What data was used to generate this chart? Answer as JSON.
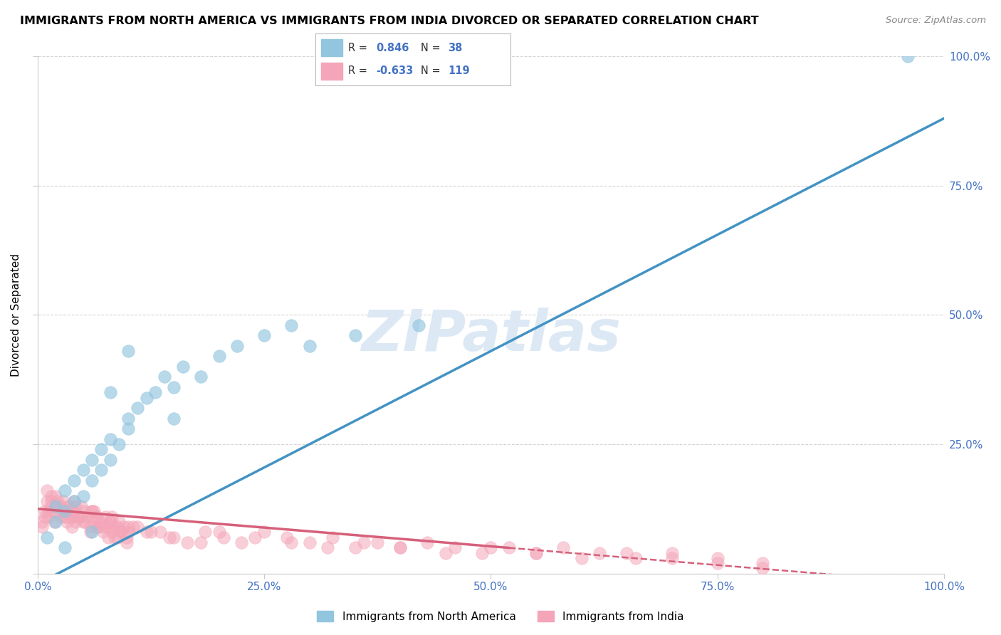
{
  "title": "IMMIGRANTS FROM NORTH AMERICA VS IMMIGRANTS FROM INDIA DIVORCED OR SEPARATED CORRELATION CHART",
  "source": "Source: ZipAtlas.com",
  "ylabel": "Divorced or Separated",
  "legend_bottom": [
    "Immigrants from North America",
    "Immigrants from India"
  ],
  "blue_R": "0.846",
  "blue_N": "38",
  "pink_R": "-0.633",
  "pink_N": "119",
  "blue_color": "#92c5de",
  "pink_color": "#f4a6b8",
  "blue_line_color": "#4393c3",
  "pink_line_color": "#d6607a",
  "watermark": "ZIPatlas",
  "watermark_color": "#dce9f5",
  "xlim": [
    0,
    1.0
  ],
  "ylim": [
    0,
    1.0
  ],
  "xticks": [
    0.0,
    0.25,
    0.5,
    0.75,
    1.0
  ],
  "yticks": [
    0.25,
    0.5,
    0.75,
    1.0
  ],
  "xtick_labels": [
    "0.0%",
    "25.0%",
    "50.0%",
    "75.0%",
    "100.0%"
  ],
  "ytick_labels_right": [
    "25.0%",
    "50.0%",
    "75.0%",
    "100.0%"
  ],
  "background_color": "#ffffff",
  "grid_color": "#d0d0d0",
  "blue_x": [
    0.01,
    0.02,
    0.02,
    0.03,
    0.03,
    0.04,
    0.04,
    0.05,
    0.05,
    0.06,
    0.06,
    0.07,
    0.07,
    0.08,
    0.08,
    0.09,
    0.1,
    0.1,
    0.11,
    0.12,
    0.13,
    0.14,
    0.15,
    0.16,
    0.18,
    0.2,
    0.22,
    0.25,
    0.28,
    0.3,
    0.1,
    0.03,
    0.15,
    0.06,
    0.08,
    0.35,
    0.42,
    0.96
  ],
  "blue_y": [
    0.07,
    0.1,
    0.13,
    0.12,
    0.16,
    0.14,
    0.18,
    0.15,
    0.2,
    0.18,
    0.22,
    0.2,
    0.24,
    0.22,
    0.26,
    0.25,
    0.28,
    0.3,
    0.32,
    0.34,
    0.35,
    0.38,
    0.36,
    0.4,
    0.38,
    0.42,
    0.44,
    0.46,
    0.48,
    0.44,
    0.43,
    0.05,
    0.3,
    0.08,
    0.35,
    0.46,
    0.48,
    1.0
  ],
  "pink_x": [
    0.005,
    0.008,
    0.01,
    0.012,
    0.015,
    0.018,
    0.02,
    0.022,
    0.025,
    0.028,
    0.03,
    0.032,
    0.035,
    0.038,
    0.04,
    0.042,
    0.045,
    0.048,
    0.05,
    0.052,
    0.055,
    0.058,
    0.06,
    0.062,
    0.065,
    0.068,
    0.07,
    0.072,
    0.075,
    0.078,
    0.08,
    0.082,
    0.085,
    0.088,
    0.09,
    0.092,
    0.095,
    0.098,
    0.1,
    0.01,
    0.015,
    0.02,
    0.025,
    0.03,
    0.035,
    0.04,
    0.005,
    0.008,
    0.012,
    0.018,
    0.022,
    0.028,
    0.032,
    0.038,
    0.042,
    0.048,
    0.052,
    0.058,
    0.062,
    0.068,
    0.072,
    0.078,
    0.082,
    0.088,
    0.092,
    0.098,
    0.015,
    0.025,
    0.045,
    0.065,
    0.085,
    0.105,
    0.125,
    0.145,
    0.165,
    0.185,
    0.205,
    0.225,
    0.25,
    0.275,
    0.3,
    0.325,
    0.35,
    0.375,
    0.4,
    0.43,
    0.46,
    0.49,
    0.52,
    0.55,
    0.58,
    0.62,
    0.66,
    0.7,
    0.75,
    0.8,
    0.1,
    0.12,
    0.15,
    0.18,
    0.2,
    0.24,
    0.28,
    0.32,
    0.36,
    0.4,
    0.45,
    0.5,
    0.55,
    0.6,
    0.65,
    0.7,
    0.75,
    0.8,
    0.04,
    0.06,
    0.08,
    0.11,
    0.135
  ],
  "pink_y": [
    0.1,
    0.12,
    0.14,
    0.11,
    0.13,
    0.12,
    0.15,
    0.13,
    0.11,
    0.14,
    0.12,
    0.1,
    0.13,
    0.11,
    0.12,
    0.1,
    0.11,
    0.13,
    0.1,
    0.12,
    0.11,
    0.09,
    0.12,
    0.1,
    0.11,
    0.09,
    0.1,
    0.08,
    0.11,
    0.09,
    0.1,
    0.08,
    0.09,
    0.07,
    0.1,
    0.08,
    0.09,
    0.07,
    0.08,
    0.16,
    0.14,
    0.13,
    0.12,
    0.11,
    0.13,
    0.12,
    0.09,
    0.11,
    0.12,
    0.1,
    0.14,
    0.12,
    0.11,
    0.09,
    0.13,
    0.11,
    0.1,
    0.08,
    0.12,
    0.1,
    0.09,
    0.07,
    0.11,
    0.09,
    0.08,
    0.06,
    0.15,
    0.13,
    0.11,
    0.09,
    0.07,
    0.09,
    0.08,
    0.07,
    0.06,
    0.08,
    0.07,
    0.06,
    0.08,
    0.07,
    0.06,
    0.07,
    0.05,
    0.06,
    0.05,
    0.06,
    0.05,
    0.04,
    0.05,
    0.04,
    0.05,
    0.04,
    0.03,
    0.04,
    0.03,
    0.02,
    0.09,
    0.08,
    0.07,
    0.06,
    0.08,
    0.07,
    0.06,
    0.05,
    0.06,
    0.05,
    0.04,
    0.05,
    0.04,
    0.03,
    0.04,
    0.03,
    0.02,
    0.01,
    0.14,
    0.12,
    0.1,
    0.09,
    0.08
  ],
  "blue_trend_y_start": -0.02,
  "blue_trend_y_end": 0.88,
  "pink_trend_y_start": 0.125,
  "pink_trend_y_end": -0.02,
  "pink_trend_dashed_start": 0.52
}
